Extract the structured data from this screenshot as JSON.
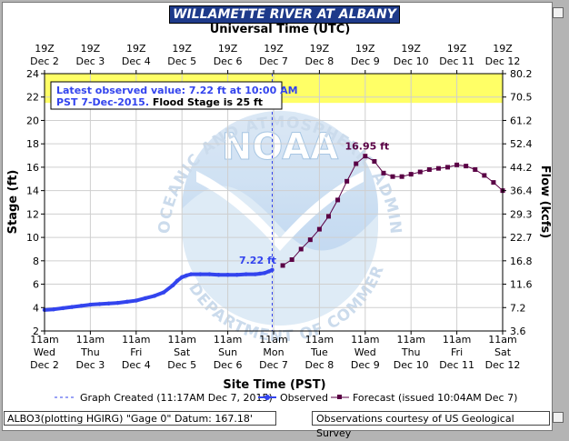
{
  "title": "WILLAMETTE RIVER AT ALBANY",
  "top_axis_title": "Universal Time (UTC)",
  "bottom_axis_title": "Site Time (PST)",
  "footer_left": "ALBO3(plotting HGIRG) \"Gage 0\" Datum: 167.18'",
  "footer_right": "Observations courtesy of US Geological Survey",
  "colors": {
    "observed": "#3344ee",
    "forecast": "#5a0045",
    "flood_band": "#ffff66",
    "title_bg": "#1e3a8a"
  },
  "chart_data": {
    "type": "line",
    "title": "WILLAMETTE RIVER AT ALBANY",
    "ylabel": "Stage (ft)",
    "y2label": "Flow (kcfs)",
    "xlabel": "Site Time (PST)",
    "x2label": "Universal Time (UTC)",
    "ylim": [
      2,
      24
    ],
    "x_range_days": [
      "Dec 2 11am",
      "Dec 12 11am"
    ],
    "y_ticks": [
      "2",
      "4",
      "6",
      "8",
      "10",
      "12",
      "14",
      "16",
      "18",
      "20",
      "22",
      "24"
    ],
    "y2_ticks": [
      "3.6",
      "7.2",
      "11.6",
      "16.8",
      "22.7",
      "29.3",
      "36.4",
      "44.2",
      "52.4",
      "61.2",
      "70.5",
      "80.2"
    ],
    "top_ticks": [
      {
        "hour": "19Z",
        "date": "Dec 2"
      },
      {
        "hour": "19Z",
        "date": "Dec 3"
      },
      {
        "hour": "19Z",
        "date": "Dec 4"
      },
      {
        "hour": "19Z",
        "date": "Dec 5"
      },
      {
        "hour": "19Z",
        "date": "Dec 6"
      },
      {
        "hour": "19Z",
        "date": "Dec 7"
      },
      {
        "hour": "19Z",
        "date": "Dec 8"
      },
      {
        "hour": "19Z",
        "date": "Dec 9"
      },
      {
        "hour": "19Z",
        "date": "Dec 10"
      },
      {
        "hour": "19Z",
        "date": "Dec 11"
      },
      {
        "hour": "19Z",
        "date": "Dec 12"
      }
    ],
    "bottom_ticks": [
      {
        "time": "11am",
        "day": "Wed",
        "date": "Dec 2"
      },
      {
        "time": "11am",
        "day": "Thu",
        "date": "Dec 3"
      },
      {
        "time": "11am",
        "day": "Fri",
        "date": "Dec 4"
      },
      {
        "time": "11am",
        "day": "Sat",
        "date": "Dec 5"
      },
      {
        "time": "11am",
        "day": "Sun",
        "date": "Dec 6"
      },
      {
        "time": "11am",
        "day": "Mon",
        "date": "Dec 7"
      },
      {
        "time": "11am",
        "day": "Tue",
        "date": "Dec 8"
      },
      {
        "time": "11am",
        "day": "Wed",
        "date": "Dec 9"
      },
      {
        "time": "11am",
        "day": "Thu",
        "date": "Dec 10"
      },
      {
        "time": "11am",
        "day": "Fri",
        "date": "Dec 11"
      },
      {
        "time": "11am",
        "day": "Sat",
        "date": "Dec 12"
      }
    ],
    "flood_band": {
      "from": 21.5,
      "to": 24
    },
    "graph_created_x": 4.97,
    "series": [
      {
        "name": "Observed",
        "x": [
          0.0,
          0.2,
          0.4,
          0.6,
          0.8,
          1.0,
          1.2,
          1.4,
          1.6,
          1.8,
          2.0,
          2.2,
          2.4,
          2.6,
          2.8,
          2.9,
          3.0,
          3.1,
          3.2,
          3.4,
          3.6,
          3.8,
          4.0,
          4.2,
          4.4,
          4.6,
          4.7,
          4.8,
          4.9,
          4.97
        ],
        "y": [
          3.8,
          3.85,
          3.95,
          4.05,
          4.15,
          4.25,
          4.3,
          4.35,
          4.4,
          4.5,
          4.6,
          4.8,
          5.0,
          5.3,
          5.9,
          6.3,
          6.6,
          6.75,
          6.85,
          6.85,
          6.85,
          6.8,
          6.8,
          6.8,
          6.85,
          6.85,
          6.9,
          6.95,
          7.1,
          7.22
        ]
      },
      {
        "name": "Forecast (issued 10:04AM Dec 7)",
        "x": [
          5.2,
          5.4,
          5.6,
          5.8,
          6.0,
          6.2,
          6.4,
          6.6,
          6.8,
          7.0,
          7.2,
          7.4,
          7.6,
          7.8,
          8.0,
          8.2,
          8.4,
          8.6,
          8.8,
          9.0,
          9.2,
          9.4,
          9.6,
          9.8,
          10.0
        ],
        "y": [
          7.6,
          8.1,
          9.0,
          9.8,
          10.7,
          11.8,
          13.2,
          14.8,
          16.3,
          16.95,
          16.5,
          15.5,
          15.2,
          15.2,
          15.4,
          15.6,
          15.8,
          15.9,
          16.0,
          16.2,
          16.1,
          15.8,
          15.3,
          14.7,
          14.0
        ]
      }
    ],
    "annotations": {
      "observed_value": "Latest observed value: 7.22 ft at 10:00 AM",
      "observed_date": "PST 7-Dec-2015.",
      "flood_stage": " Flood Stage is 25 ft",
      "observed_label": "7.22 ft",
      "peak_label": "16.95 ft"
    },
    "legend": {
      "graph_created": "Graph Created (11:17AM Dec 7, 2015)",
      "observed": "Observed",
      "forecast": "Forecast (issued 10:04AM Dec 7)"
    },
    "watermark": {
      "center": "NOAA",
      "ring_top": "NATIONAL OCEANIC AND ATMOSPHERIC ADMINISTRATION",
      "ring_bottom": "U.S. DEPARTMENT OF COMMERCE"
    }
  }
}
